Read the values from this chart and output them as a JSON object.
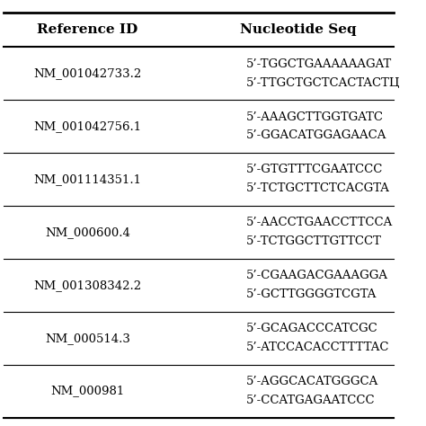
{
  "col1_header": "Reference ID",
  "col2_header": "Nucleotide Seq",
  "rows": [
    {
      "ref_id": "NM_001042733.2",
      "seq_line1": "5’-TGGCTGAAAAAAGAT",
      "seq_line2": "5’-TTGCTGCTCACTACTЦ"
    },
    {
      "ref_id": "NM_001042756.1",
      "seq_line1": "5’-AAAGCTTGGTGATC",
      "seq_line2": "5’-GGACATGGAGAACA"
    },
    {
      "ref_id": "NM_001114351.1",
      "seq_line1": "5’-GTGTTTCGAATCCC",
      "seq_line2": "5’-TCTGCTTCTCACGTA"
    },
    {
      "ref_id": "NM_000600.4",
      "seq_line1": "5’-AACCTGAACCTTCCA",
      "seq_line2": "5’-TCTGGCTTGTTCCT"
    },
    {
      "ref_id": "NM_001308342.2",
      "seq_line1": "5’-CGAAGACGAAAGGA",
      "seq_line2": "5’-GCTTGGGGTCGTA"
    },
    {
      "ref_id": "NM_000514.3",
      "seq_line1": "5’-GCAGACCCATCGC",
      "seq_line2": "5’-ATCCACACCTTTTAC"
    },
    {
      "ref_id": "NM_000981",
      "seq_line1": "5’-AGGCACATGGGCA",
      "seq_line2": "5’-CCATGAGAATCCC"
    }
  ],
  "bg_color": "#ffffff",
  "header_bg": "#ffffff",
  "line_color": "#000000",
  "text_color": "#000000",
  "font_size": 9.5,
  "header_font_size": 11
}
